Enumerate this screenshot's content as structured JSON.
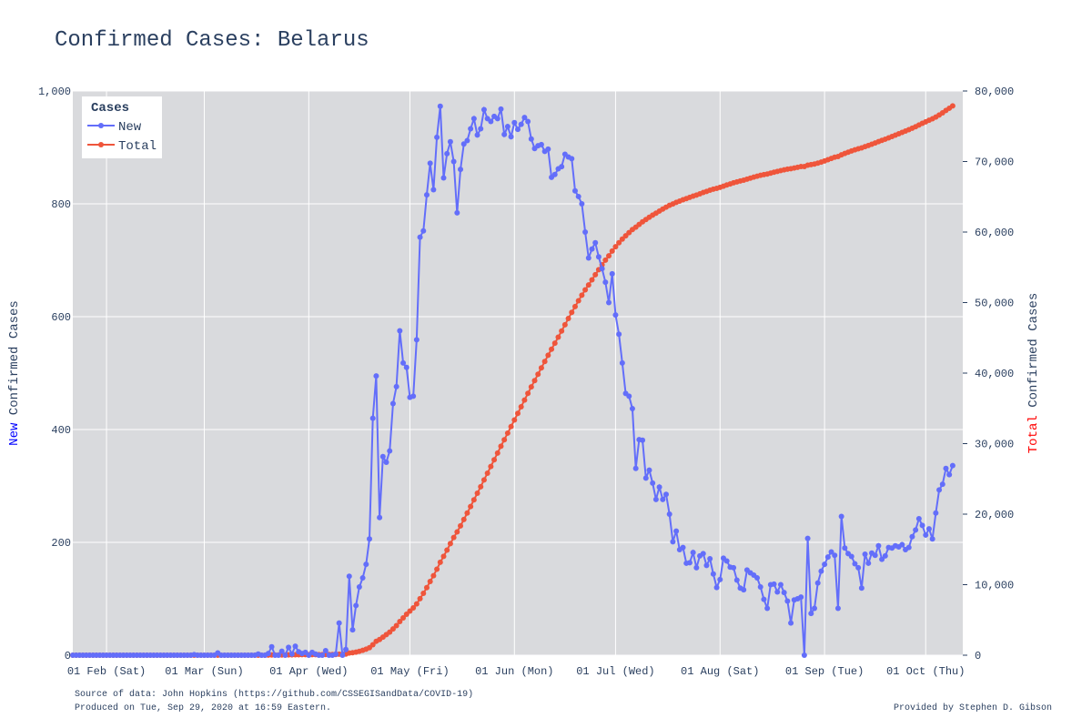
{
  "colors": {
    "plot_bg": "#d9dadd",
    "grid": "#ffffff",
    "new_series": "#636efa",
    "total_series": "#ef553b",
    "text": "#2a3f5f",
    "new_word": "#0000ff",
    "total_word": "#ff0000"
  },
  "chart_data": {
    "type": "line",
    "title": "Confirmed Cases: Belarus",
    "left_axis_title": {
      "highlight": "New",
      "rest": " Confirmed Cases"
    },
    "right_axis_title": {
      "highlight": "Total",
      "rest": " Confirmed Cases"
    },
    "x_range": [
      "2020-01-22",
      "2020-10-12"
    ],
    "x_ticks": [
      {
        "date": "2020-02-01",
        "label": "01 Feb (Sat)"
      },
      {
        "date": "2020-03-01",
        "label": "01 Mar (Sun)"
      },
      {
        "date": "2020-04-01",
        "label": "01 Apr (Wed)"
      },
      {
        "date": "2020-05-01",
        "label": "01 May (Fri)"
      },
      {
        "date": "2020-06-01",
        "label": "01 Jun (Mon)"
      },
      {
        "date": "2020-07-01",
        "label": "01 Jul (Wed)"
      },
      {
        "date": "2020-08-01",
        "label": "01 Aug (Sat)"
      },
      {
        "date": "2020-09-01",
        "label": "01 Sep (Tue)"
      },
      {
        "date": "2020-10-01",
        "label": "01 Oct (Thu)"
      }
    ],
    "y_left": {
      "range": [
        0,
        1000
      ],
      "ticks": [
        0,
        200,
        400,
        600,
        800,
        1000
      ],
      "tick_labels": [
        "0",
        "200",
        "400",
        "600",
        "800",
        "1,000"
      ]
    },
    "y_right": {
      "range": [
        0,
        80000
      ],
      "ticks": [
        0,
        10000,
        20000,
        30000,
        40000,
        50000,
        60000,
        70000,
        80000
      ],
      "tick_labels": [
        "0",
        "10,000",
        "20,000",
        "30,000",
        "40,000",
        "50,000",
        "60,000",
        "70,000",
        "80,000"
      ]
    },
    "grid": true,
    "legend": {
      "title": "Cases",
      "placement": "top-left",
      "entries": [
        "New",
        "Total"
      ]
    },
    "start_date": "2020-01-22",
    "end_date": "2020-09-28",
    "series": [
      {
        "name": "New",
        "axis": "left",
        "values": [
          0,
          0,
          0,
          0,
          0,
          0,
          0,
          0,
          0,
          0,
          0,
          0,
          0,
          0,
          0,
          0,
          0,
          0,
          0,
          0,
          0,
          0,
          0,
          0,
          0,
          0,
          0,
          0,
          0,
          0,
          0,
          0,
          0,
          0,
          0,
          0,
          1,
          0,
          0,
          0,
          0,
          0,
          0,
          4,
          0,
          0,
          0,
          0,
          0,
          0,
          0,
          0,
          0,
          0,
          0,
          2,
          0,
          0,
          3,
          15,
          0,
          0,
          7,
          0,
          14,
          2,
          16,
          6,
          3,
          5,
          0,
          5,
          2,
          0,
          0,
          8,
          0,
          0,
          2,
          57,
          0,
          10,
          140,
          45,
          88,
          121,
          137,
          161,
          206,
          420,
          495,
          244,
          352,
          342,
          362,
          446,
          476,
          575,
          518,
          510,
          457,
          459,
          559,
          741,
          752,
          816,
          872,
          825,
          918,
          973,
          846,
          889,
          910,
          875,
          784,
          861,
          906,
          912,
          933,
          951,
          922,
          933,
          967,
          951,
          946,
          955,
          951,
          968,
          923,
          937,
          919,
          944,
          932,
          941,
          953,
          946,
          915,
          898,
          903,
          905,
          893,
          897,
          847,
          852,
          862,
          866,
          888,
          883,
          880,
          823,
          813,
          800,
          750,
          704,
          720,
          731,
          706,
          685,
          661,
          625,
          676,
          603,
          569,
          518,
          464,
          459,
          437,
          331,
          382,
          381,
          314,
          328,
          305,
          276,
          298,
          276,
          285,
          250,
          201,
          220,
          187,
          191,
          163,
          164,
          182,
          155,
          176,
          180,
          159,
          171,
          144,
          120,
          134,
          172,
          167,
          156,
          155,
          133,
          119,
          116,
          151,
          146,
          142,
          137,
          121,
          99,
          83,
          125,
          126,
          112,
          125,
          111,
          96,
          57,
          98,
          100,
          103,
          0,
          207,
          74,
          83,
          128,
          149,
          161,
          174,
          183,
          177,
          83,
          246,
          190,
          180,
          175,
          162,
          155,
          119,
          179,
          163,
          181,
          177,
          194,
          170,
          176,
          191,
          190,
          194,
          192,
          196,
          187,
          191,
          210,
          222,
          242,
          230,
          213,
          224,
          206,
          252,
          293,
          303,
          331,
          320,
          336
        ]
      },
      {
        "name": "Total",
        "axis": "right",
        "start_total": 0
      }
    ]
  },
  "footer": {
    "source": "Source of data: John Hopkins (https://github.com/CSSEGISandData/COVID-19)",
    "produced": "Produced on Tue, Sep 29, 2020 at 16:59 Eastern.",
    "provided": "Provided by Stephen D. Gibson"
  }
}
